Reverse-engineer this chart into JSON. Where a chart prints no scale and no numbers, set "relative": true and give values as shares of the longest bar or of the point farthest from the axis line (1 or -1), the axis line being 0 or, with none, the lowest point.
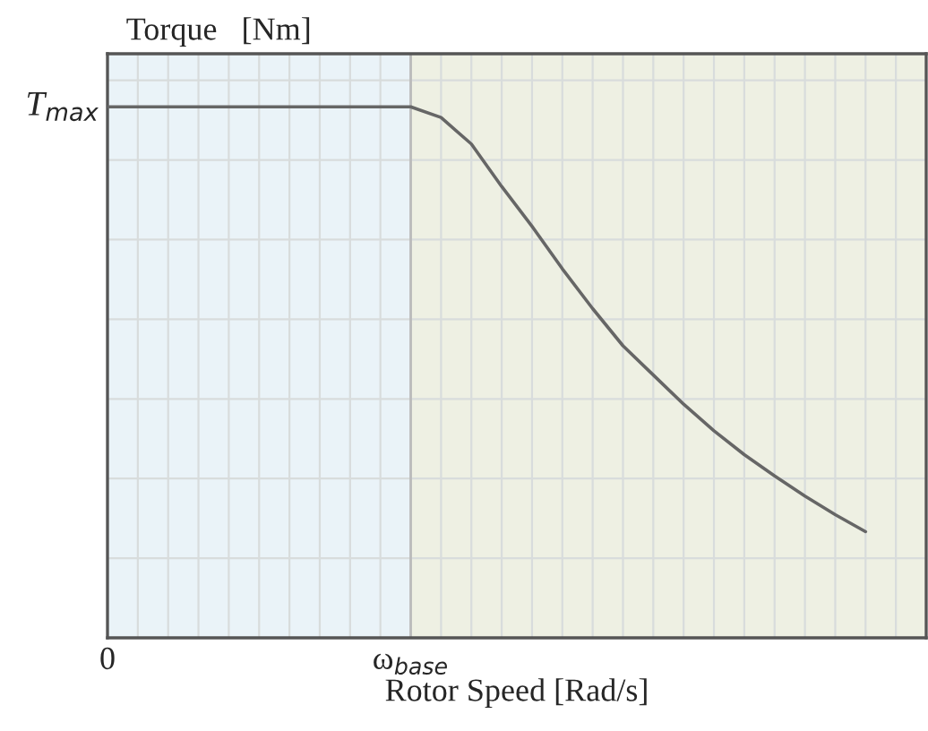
{
  "chart_data": {
    "type": "line",
    "xlabel": "Rotor Speed [Rad/s]",
    "ylabel": "Torque   [Nm]",
    "relative": true,
    "categories": [
      "0",
      null,
      null,
      null,
      null,
      null,
      null,
      null,
      null,
      null,
      "ω$_{base}$",
      null,
      null,
      null,
      null,
      null,
      null,
      null,
      null,
      null,
      null,
      null,
      null,
      null,
      null,
      null,
      null,
      null
    ],
    "series": [
      {
        "color": "#666666",
        "values": [
          1,
          1,
          1,
          1,
          1,
          1,
          1,
          1,
          1,
          1,
          1,
          0.98,
          0.93,
          0.85,
          0.775,
          0.695,
          0.62,
          0.55,
          0.495,
          0.44,
          0.39,
          0.345,
          0.305,
          0.267,
          0.232,
          0.2,
          null,
          null
        ]
      }
    ],
    "annotations": [
      "T$_{max}$"
    ],
    "bands": [
      {
        "axis": "x",
        "from": "0",
        "to": "ω$_{base}$",
        "color": "#eaf3f8"
      }
    ],
    "grid": true,
    "line_style": "solid",
    "marker": "none"
  }
}
